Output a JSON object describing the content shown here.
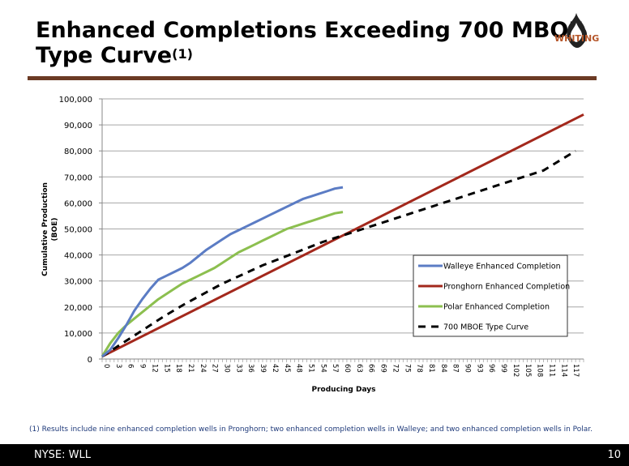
{
  "slide": {
    "title_line1": "Enhanced Completions Exceeding 700 MBOE",
    "title_line2": "Type Curve",
    "title_sup": "(1)",
    "logo_text": "WHITING",
    "footnote": "(1)  Results include nine enhanced completion wells in Pronghorn; two enhanced completion wells in Walleye; and two enhanced completion wells in Polar.",
    "footer_left": "NYSE: WLL",
    "page_number": "10"
  },
  "colors": {
    "rule": "#6b3a24",
    "logo_accent": "#b5562a",
    "walleye": "#5b7cc4",
    "pronghorn": "#a3281c",
    "polar": "#8cbf4f",
    "type_curve": "#000000"
  },
  "chart_data": {
    "type": "line",
    "title": "",
    "xlabel": "Producing Days",
    "ylabel": "Cumulative Production (BOE)",
    "ylabel_lines": [
      "Cumulative Production",
      "(BOE)"
    ],
    "xlim": [
      0,
      120
    ],
    "ylim": [
      0,
      100000
    ],
    "grid": true,
    "legend": "bottom-right",
    "y_ticks": [
      0,
      10000,
      20000,
      30000,
      40000,
      50000,
      60000,
      70000,
      80000,
      90000,
      100000
    ],
    "y_tick_labels": [
      "0",
      "10,000",
      "20,000",
      "30,000",
      "40,000",
      "50,000",
      "60,000",
      "70,000",
      "80,000",
      "90,000",
      "100,000"
    ],
    "x_tick_labels": [
      "0",
      "3",
      "6",
      "9",
      "12",
      "15",
      "18",
      "21",
      "24",
      "27",
      "30",
      "33",
      "36",
      "39",
      "42",
      "45",
      "48",
      "51",
      "54",
      "57",
      "60",
      "63",
      "66",
      "69",
      "72",
      "75",
      "78",
      "81",
      "84",
      "87",
      "90",
      "93",
      "96",
      "99",
      "102",
      "105",
      "108",
      "111",
      "114",
      "117"
    ],
    "series": [
      {
        "name": "Walleye Enhanced Completion",
        "color_key": "walleye",
        "dash": false,
        "x": [
          0,
          2,
          4,
          6,
          8,
          10,
          12,
          14,
          16,
          18,
          20,
          22,
          24,
          26,
          28,
          30,
          32,
          34,
          36,
          38,
          40,
          42,
          44,
          46,
          48,
          50,
          52,
          54,
          56,
          58,
          60
        ],
        "y": [
          1000,
          3500,
          8000,
          13000,
          18500,
          23000,
          27000,
          30500,
          32000,
          33500,
          35000,
          37000,
          39500,
          42000,
          44000,
          46000,
          48000,
          49500,
          51000,
          52500,
          54000,
          55500,
          57000,
          58500,
          60000,
          61500,
          62500,
          63500,
          64500,
          65500,
          66000
        ]
      },
      {
        "name": "Pronghorn Enhanced Completion",
        "color_key": "pronghorn",
        "dash": false,
        "x": [
          0,
          120
        ],
        "y": [
          1000,
          94000
        ]
      },
      {
        "name": "Polar Enhanced Completion",
        "color_key": "polar",
        "dash": false,
        "x": [
          0,
          2,
          4,
          6,
          8,
          10,
          12,
          14,
          16,
          18,
          20,
          22,
          24,
          26,
          28,
          30,
          32,
          34,
          36,
          38,
          40,
          42,
          44,
          46,
          48,
          50,
          52,
          54,
          56,
          58,
          60
        ],
        "y": [
          1000,
          6000,
          10000,
          13000,
          15500,
          18000,
          20500,
          23000,
          25000,
          27000,
          29000,
          30500,
          32000,
          33500,
          35000,
          37000,
          39000,
          41000,
          42500,
          44000,
          45500,
          47000,
          48500,
          50000,
          51000,
          52000,
          53000,
          54000,
          55000,
          56000,
          56500
        ]
      },
      {
        "name": "700 MBOE Type Curve",
        "color_key": "type_curve",
        "dash": true,
        "x": [
          0,
          3,
          6,
          9,
          12,
          15,
          18,
          21,
          24,
          27,
          30,
          35,
          40,
          45,
          50,
          55,
          60,
          70,
          80,
          90,
          100,
          110,
          118
        ],
        "y": [
          1000,
          4000,
          7000,
          10000,
          13000,
          16000,
          18800,
          21500,
          24000,
          26500,
          29000,
          32500,
          36000,
          39000,
          42000,
          45000,
          47500,
          52500,
          57500,
          62500,
          67500,
          72500,
          80000
        ]
      }
    ]
  }
}
